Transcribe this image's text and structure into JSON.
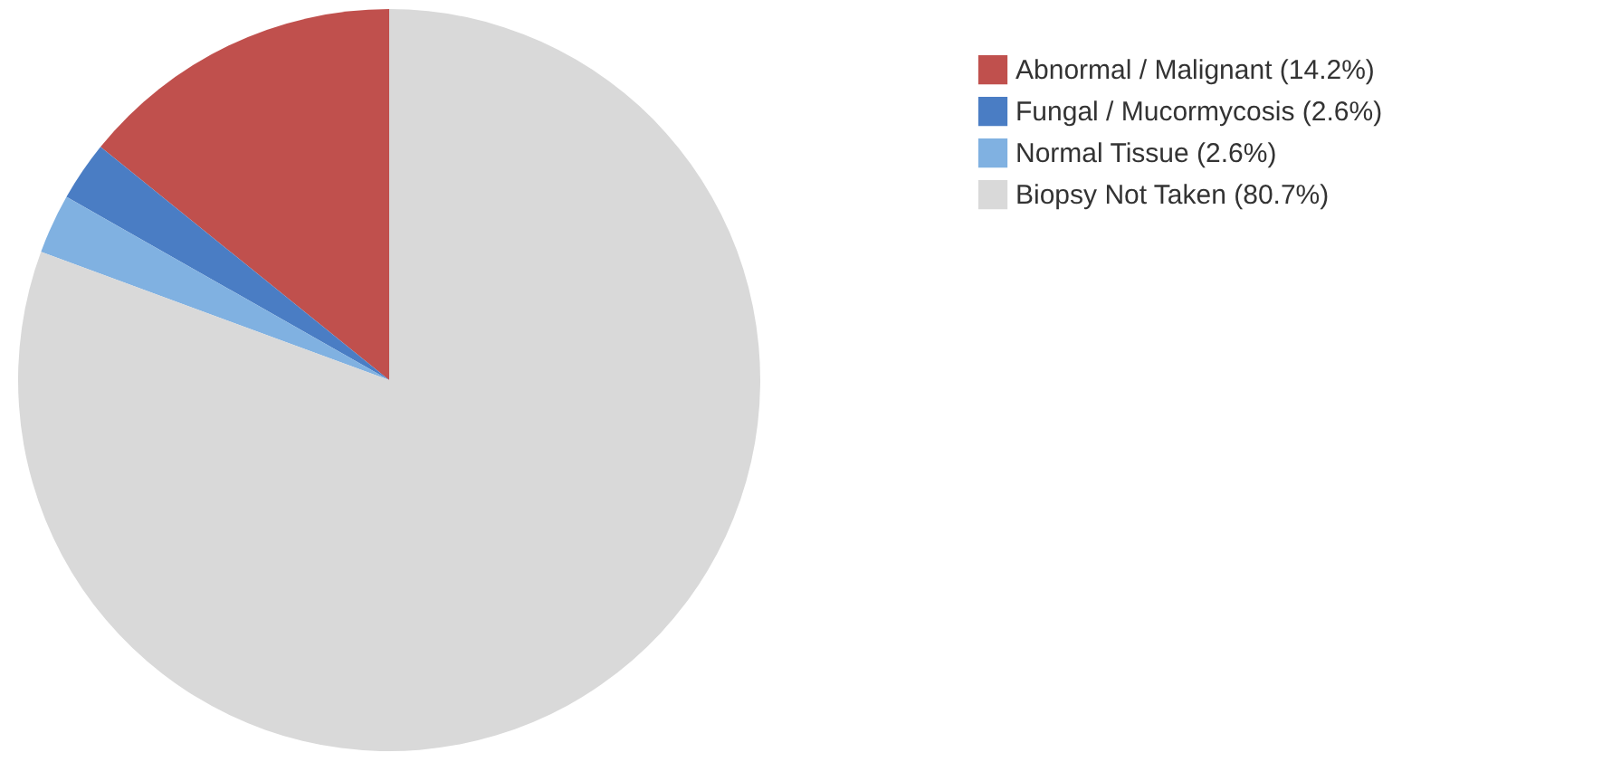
{
  "chart_data": {
    "type": "pie",
    "categories": [
      "Abnormal / Malignant (14.2%)",
      "Fungal / Mucormycosis (2.6%)",
      "Normal Tissue (2.6%)",
      "Biopsy Not Taken (80.7%)"
    ],
    "values": [
      14.2,
      2.6,
      2.6,
      80.7
    ],
    "colors": [
      "#c0504d",
      "#4a7dc4",
      "#80b1e1",
      "#d9d9d9"
    ],
    "legend": "top right"
  }
}
